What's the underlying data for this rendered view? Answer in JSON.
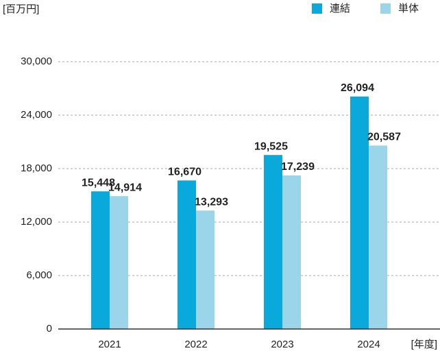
{
  "chart_data": {
    "type": "bar",
    "y_label": "[百万円]",
    "x_label": "[年度]",
    "categories": [
      "2021",
      "2022",
      "2023",
      "2024"
    ],
    "series": [
      {
        "name": "連結",
        "color": "#0aa9dc",
        "values": [
          15448,
          16670,
          19525,
          26094
        ],
        "value_labels": [
          "15,448",
          "16,670",
          "19,525",
          "26,094"
        ]
      },
      {
        "name": "単体",
        "color": "#9ad5ea",
        "values": [
          14914,
          13293,
          17239,
          20587
        ],
        "value_labels": [
          "14,914",
          "13,293",
          "17,239",
          "20,587"
        ]
      }
    ],
    "ylim": [
      0,
      30000
    ],
    "yticks": [
      0,
      {
        "value": 6000,
        "label": "6,000"
      },
      {
        "value": 12000,
        "label": "12,000"
      },
      {
        "value": 18000,
        "label": "18,000"
      },
      {
        "value": 24000,
        "label": "24,000"
      },
      {
        "value": 30000,
        "label": "30,000"
      }
    ],
    "grid": true
  }
}
